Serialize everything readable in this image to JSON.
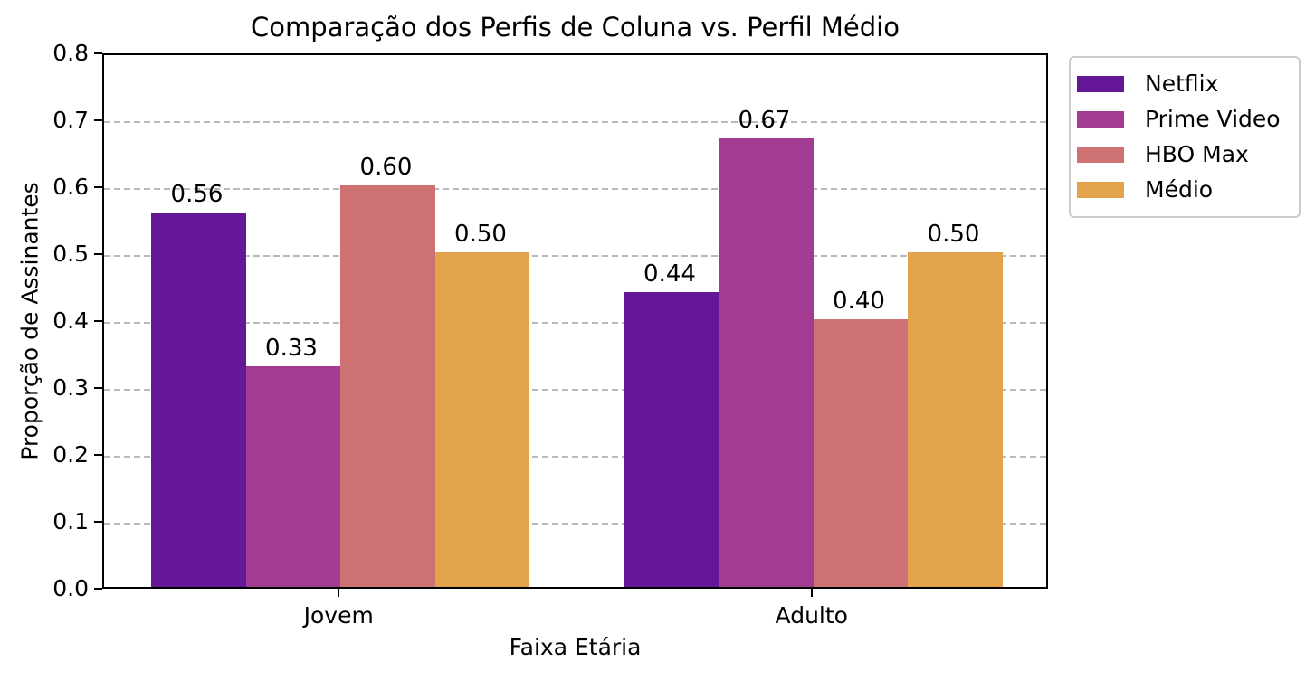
{
  "chart_data": {
    "type": "bar",
    "title": "Comparação dos Perfis de Coluna vs. Perfil Médio",
    "xlabel": "Faixa Etária",
    "ylabel": "Proporção de Assinantes",
    "categories": [
      "Jovem",
      "Adulto"
    ],
    "series": [
      {
        "name": "Netflix",
        "color": "#641898",
        "values": [
          0.56,
          0.44
        ]
      },
      {
        "name": "Prime Video",
        "color": "#a23c92",
        "values": [
          0.33,
          0.67
        ]
      },
      {
        "name": "HBO Max",
        "color": "#ce7173",
        "values": [
          0.6,
          0.4
        ]
      },
      {
        "name": "Médio",
        "color": "#e3a34d",
        "values": [
          0.5,
          0.5
        ]
      }
    ],
    "value_labels": [
      [
        "0.56",
        "0.33",
        "0.60",
        "0.50"
      ],
      [
        "0.44",
        "0.67",
        "0.40",
        "0.50"
      ]
    ],
    "ylim": [
      0.0,
      0.8
    ],
    "ytick_step": 0.1,
    "ytick_labels": [
      "0.0",
      "0.1",
      "0.2",
      "0.3",
      "0.4",
      "0.5",
      "0.6",
      "0.7",
      "0.8"
    ],
    "grid": "horizontal-dashed",
    "legend_position": "upper-right-outside",
    "colors": {
      "grid": "#b9b9b9",
      "spine": "#000000",
      "text": "#000000",
      "background": "#ffffff",
      "legend_border": "#cccccc"
    }
  }
}
